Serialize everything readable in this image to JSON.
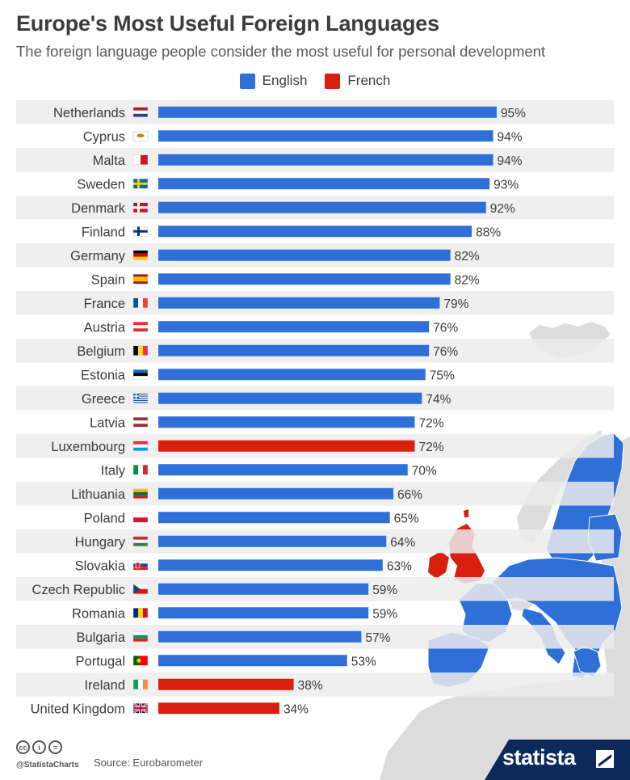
{
  "chart_data": {
    "type": "bar",
    "orientation": "horizontal",
    "title": "Europe's Most Useful Foreign Languages",
    "subtitle": "The foreign language people consider the most useful for personal development",
    "xlim": [
      0,
      100
    ],
    "value_suffix": "%",
    "legend": [
      {
        "name": "English",
        "color": "#2f6fd8"
      },
      {
        "name": "French",
        "color": "#d9200f"
      }
    ],
    "rows": [
      {
        "country": "Netherlands",
        "value": 95,
        "language": "English",
        "flag": "netherlands-flag"
      },
      {
        "country": "Cyprus",
        "value": 94,
        "language": "English",
        "flag": "cyprus-flag"
      },
      {
        "country": "Malta",
        "value": 94,
        "language": "English",
        "flag": "malta-flag"
      },
      {
        "country": "Sweden",
        "value": 93,
        "language": "English",
        "flag": "sweden-flag"
      },
      {
        "country": "Denmark",
        "value": 92,
        "language": "English",
        "flag": "denmark-flag"
      },
      {
        "country": "Finland",
        "value": 88,
        "language": "English",
        "flag": "finland-flag"
      },
      {
        "country": "Germany",
        "value": 82,
        "language": "English",
        "flag": "germany-flag"
      },
      {
        "country": "Spain",
        "value": 82,
        "language": "English",
        "flag": "spain-flag"
      },
      {
        "country": "France",
        "value": 79,
        "language": "English",
        "flag": "france-flag"
      },
      {
        "country": "Austria",
        "value": 76,
        "language": "English",
        "flag": "austria-flag"
      },
      {
        "country": "Belgium",
        "value": 76,
        "language": "English",
        "flag": "belgium-flag"
      },
      {
        "country": "Estonia",
        "value": 75,
        "language": "English",
        "flag": "estonia-flag"
      },
      {
        "country": "Greece",
        "value": 74,
        "language": "English",
        "flag": "greece-flag"
      },
      {
        "country": "Latvia",
        "value": 72,
        "language": "English",
        "flag": "latvia-flag"
      },
      {
        "country": "Luxembourg",
        "value": 72,
        "language": "French",
        "flag": "luxembourg-flag"
      },
      {
        "country": "Italy",
        "value": 70,
        "language": "English",
        "flag": "italy-flag"
      },
      {
        "country": "Lithuania",
        "value": 66,
        "language": "English",
        "flag": "lithuania-flag"
      },
      {
        "country": "Poland",
        "value": 65,
        "language": "English",
        "flag": "poland-flag"
      },
      {
        "country": "Hungary",
        "value": 64,
        "language": "English",
        "flag": "hungary-flag"
      },
      {
        "country": "Slovakia",
        "value": 63,
        "language": "English",
        "flag": "slovakia-flag"
      },
      {
        "country": "Czech Republic",
        "value": 59,
        "language": "English",
        "flag": "czech-republic-flag"
      },
      {
        "country": "Romania",
        "value": 59,
        "language": "English",
        "flag": "romania-flag"
      },
      {
        "country": "Bulgaria",
        "value": 57,
        "language": "English",
        "flag": "bulgaria-flag"
      },
      {
        "country": "Portugal",
        "value": 53,
        "language": "English",
        "flag": "portugal-flag"
      },
      {
        "country": "Ireland",
        "value": 38,
        "language": "French",
        "flag": "ireland-flag"
      },
      {
        "country": "United Kingdom",
        "value": 34,
        "language": "French",
        "flag": "united-kingdom-flag"
      }
    ]
  },
  "footer": {
    "handle": "@StatistaCharts",
    "source": "Source: Eurobarometer",
    "brand": "statista",
    "license_icons": [
      "cc-icon",
      "by-icon",
      "nd-icon"
    ],
    "license_glyphs": [
      "cc",
      "i",
      "="
    ]
  },
  "colors": {
    "english": "#2f6fd8",
    "french": "#d9200f",
    "row_stripe": "#ececec",
    "map_grey": "#dcdcdc",
    "brand_navy": "#0a2a5c"
  }
}
